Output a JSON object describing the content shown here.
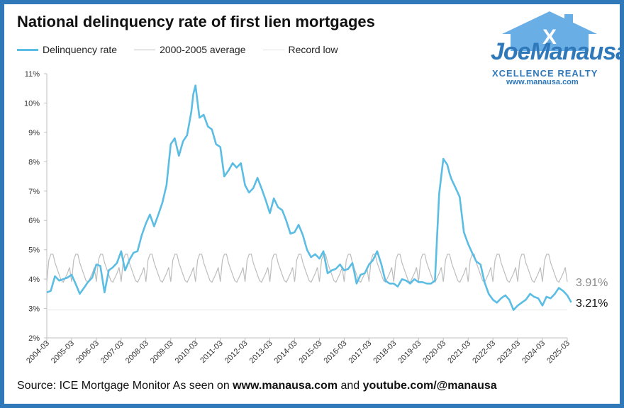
{
  "title": "National delinquency rate of first lien mortgages",
  "legend": [
    {
      "label": "Delinquency rate",
      "color": "#5bbde3"
    },
    {
      "label": "2000-2005 average",
      "color": "#bdbdbd"
    },
    {
      "label": "Record low",
      "color": "#e6e6e6"
    }
  ],
  "logo": {
    "name": "JoeManausa",
    "tagline": "XCELLENCE REALTY",
    "url": "www.manausa.com"
  },
  "source": {
    "prefix": "Source: ICE Mortgage Monitor  As seen on ",
    "site": "www.manausa.com",
    "mid": " and ",
    "channel": "youtube.com/@manausa"
  },
  "chart_data": {
    "type": "line",
    "y_ticks": [
      "2%",
      "3%",
      "4%",
      "5%",
      "6%",
      "7%",
      "8%",
      "9%",
      "10%",
      "11%"
    ],
    "ylim": [
      2,
      11
    ],
    "x_ticks": [
      "2004-03",
      "2005-03",
      "2006-03",
      "2007-03",
      "2008-03",
      "2009-03",
      "2010-03",
      "2011-03",
      "2012-03",
      "2013-03",
      "2014-03",
      "2015-03",
      "2016-03",
      "2017-03",
      "2018-03",
      "2019-03",
      "2020-03",
      "2021-03",
      "2022-03",
      "2023-03",
      "2024-03",
      "2025-03"
    ],
    "end_labels": [
      {
        "series": "2000-2005 average",
        "text": "3.91%",
        "value": 3.91
      },
      {
        "series": "Delinquency rate",
        "text": "3.21%",
        "value": 3.21
      }
    ],
    "record_low": 2.95,
    "series": [
      {
        "name": "Delinquency rate",
        "color": "#5bbde3",
        "x": [
          2004.17,
          2004.33,
          2004.5,
          2004.67,
          2004.83,
          2005.0,
          2005.17,
          2005.33,
          2005.5,
          2005.67,
          2005.83,
          2006.0,
          2006.17,
          2006.33,
          2006.5,
          2006.67,
          2006.83,
          2007.0,
          2007.17,
          2007.33,
          2007.5,
          2007.67,
          2007.83,
          2008.0,
          2008.17,
          2008.33,
          2008.5,
          2008.67,
          2008.83,
          2009.0,
          2009.17,
          2009.33,
          2009.5,
          2009.67,
          2009.83,
          2010.0,
          2010.08,
          2010.17,
          2010.33,
          2010.5,
          2010.67,
          2010.83,
          2011.0,
          2011.17,
          2011.33,
          2011.5,
          2011.67,
          2011.83,
          2012.0,
          2012.17,
          2012.33,
          2012.5,
          2012.67,
          2012.83,
          2013.0,
          2013.17,
          2013.33,
          2013.5,
          2013.67,
          2013.83,
          2014.0,
          2014.17,
          2014.33,
          2014.5,
          2014.67,
          2014.83,
          2015.0,
          2015.17,
          2015.33,
          2015.5,
          2015.67,
          2015.83,
          2016.0,
          2016.17,
          2016.33,
          2016.5,
          2016.67,
          2016.83,
          2017.0,
          2017.17,
          2017.33,
          2017.5,
          2017.67,
          2017.83,
          2018.0,
          2018.17,
          2018.33,
          2018.5,
          2018.67,
          2018.83,
          2019.0,
          2019.17,
          2019.33,
          2019.5,
          2019.67,
          2019.83,
          2020.0,
          2020.17,
          2020.33,
          2020.42,
          2020.5,
          2020.67,
          2020.83,
          2021.0,
          2021.17,
          2021.33,
          2021.5,
          2021.67,
          2021.83,
          2022.0,
          2022.17,
          2022.33,
          2022.5,
          2022.67,
          2022.83,
          2023.0,
          2023.17,
          2023.33,
          2023.5,
          2023.67,
          2023.83,
          2024.0,
          2024.17,
          2024.33,
          2024.5,
          2024.67,
          2024.83,
          2025.0,
          2025.17,
          2025.33
        ],
        "values": [
          3.55,
          3.6,
          4.1,
          3.95,
          4.0,
          4.05,
          4.15,
          3.85,
          3.5,
          3.7,
          3.9,
          4.05,
          4.5,
          4.45,
          3.55,
          4.3,
          4.4,
          4.55,
          4.95,
          4.3,
          4.65,
          4.9,
          4.95,
          5.5,
          5.9,
          6.2,
          5.8,
          6.2,
          6.6,
          7.2,
          8.6,
          8.8,
          8.2,
          8.7,
          8.9,
          9.7,
          10.3,
          10.6,
          9.5,
          9.6,
          9.2,
          9.1,
          8.6,
          8.5,
          7.5,
          7.7,
          7.95,
          7.8,
          7.95,
          7.2,
          6.95,
          7.1,
          7.45,
          7.1,
          6.7,
          6.25,
          6.75,
          6.45,
          6.35,
          6.0,
          5.55,
          5.6,
          5.85,
          5.5,
          5.0,
          4.75,
          4.85,
          4.7,
          4.95,
          4.2,
          4.3,
          4.35,
          4.5,
          4.3,
          4.35,
          4.55,
          3.85,
          4.15,
          4.2,
          4.5,
          4.65,
          4.95,
          4.5,
          3.95,
          3.85,
          3.85,
          3.75,
          4.0,
          3.95,
          3.85,
          4.0,
          3.9,
          3.9,
          3.85,
          3.85,
          3.95,
          6.9,
          8.1,
          7.9,
          7.6,
          7.4,
          7.1,
          6.8,
          5.6,
          5.2,
          4.9,
          4.6,
          4.5,
          3.9,
          3.5,
          3.3,
          3.2,
          3.35,
          3.45,
          3.3,
          2.95,
          3.1,
          3.2,
          3.3,
          3.5,
          3.4,
          3.35,
          3.1,
          3.4,
          3.35,
          3.5,
          3.7,
          3.6,
          3.45,
          3.21
        ]
      }
    ]
  }
}
